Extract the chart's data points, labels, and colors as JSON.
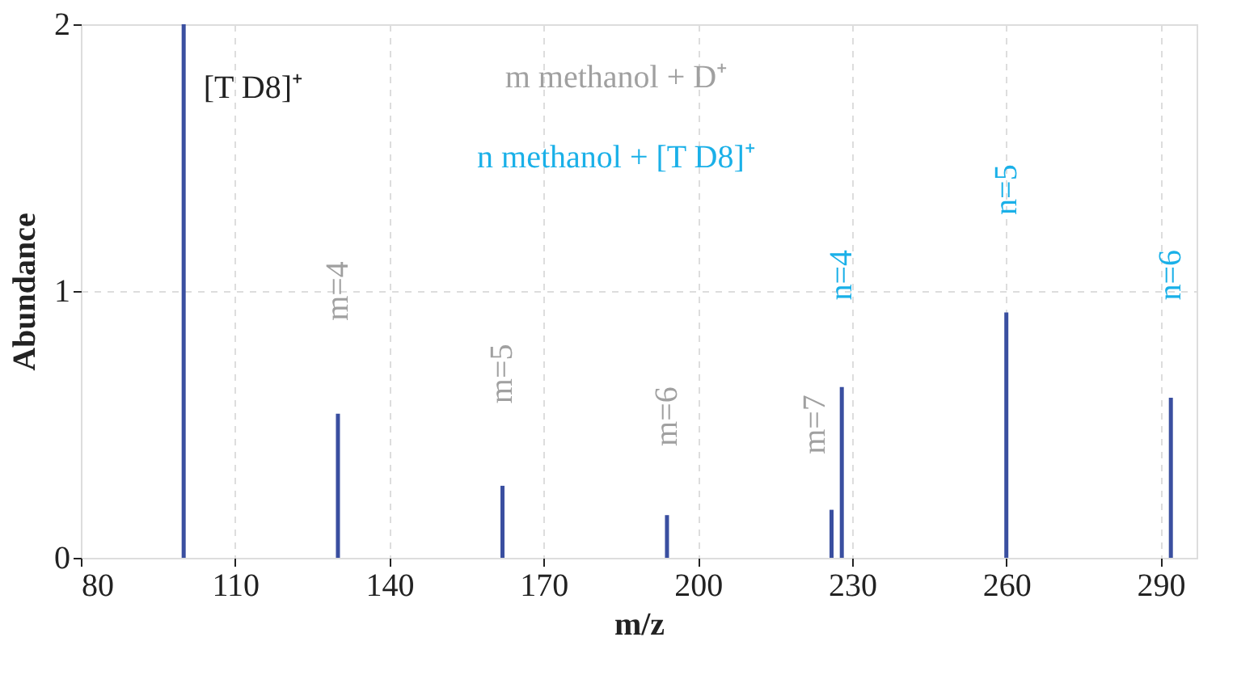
{
  "chart_data": {
    "type": "bar",
    "xlabel": "m/z",
    "ylabel": "Abundance",
    "x": [
      100,
      130,
      162,
      194,
      226,
      228,
      260,
      292
    ],
    "values": [
      2.0,
      0.54,
      0.27,
      0.16,
      0.18,
      0.64,
      0.92,
      0.6
    ],
    "color": "#3a4fa0",
    "xlim": [
      80,
      297
    ],
    "xticks": [
      80,
      110,
      140,
      170,
      200,
      230,
      260,
      290
    ],
    "ylim": [
      0,
      2
    ],
    "yticks": [
      0,
      1,
      2
    ],
    "grid": true,
    "annotations": [
      "[T D8]⁺",
      "m methanol + D⁺",
      "n methanol + [T D8]⁺",
      "m=4",
      "m=5",
      "m=6",
      "m=7",
      "n=4",
      "n=5",
      "n=6"
    ]
  }
}
